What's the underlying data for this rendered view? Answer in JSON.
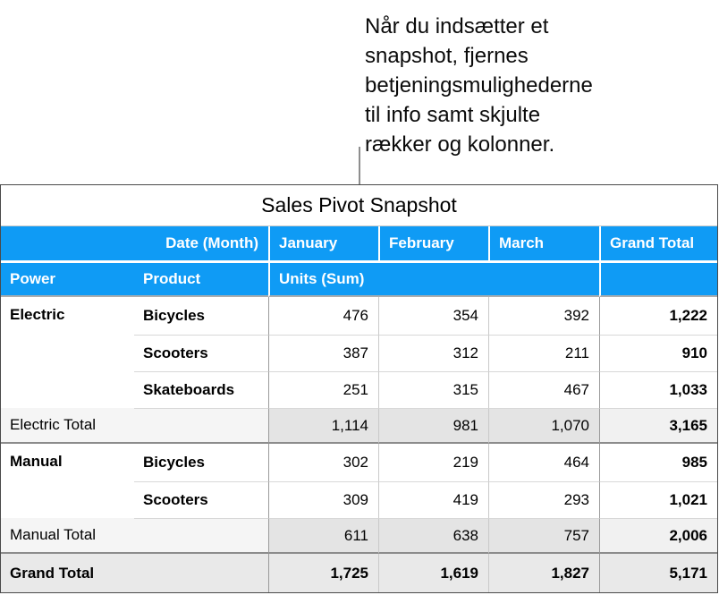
{
  "annotation": {
    "lines": [
      "Når du indsætter et",
      "snapshot, fjernes",
      "betjeningsmulighederne",
      "til info samt skjulte",
      "rækker og kolonner."
    ]
  },
  "table": {
    "title": "Sales Pivot Snapshot",
    "columns": {
      "row_header": "Date (Month)",
      "months": [
        "January",
        "February",
        "March"
      ],
      "grand": "Grand Total"
    },
    "row_fields": {
      "power": "Power",
      "product": "Product",
      "values_label": "Units (Sum)"
    },
    "groups": [
      {
        "power": "Electric",
        "rows": [
          {
            "product": "Bicycles",
            "values": [
              "476",
              "354",
              "392"
            ],
            "total": "1,222"
          },
          {
            "product": "Scooters",
            "values": [
              "387",
              "312",
              "211"
            ],
            "total": "910"
          },
          {
            "product": "Skateboards",
            "values": [
              "251",
              "315",
              "467"
            ],
            "total": "1,033"
          }
        ],
        "total": {
          "label": "Electric Total",
          "values": [
            "1,114",
            "981",
            "1,070"
          ],
          "grand": "3,165"
        }
      },
      {
        "power": "Manual",
        "rows": [
          {
            "product": "Bicycles",
            "values": [
              "302",
              "219",
              "464"
            ],
            "total": "985"
          },
          {
            "product": "Scooters",
            "values": [
              "309",
              "419",
              "293"
            ],
            "total": "1,021"
          }
        ],
        "total": {
          "label": "Manual Total",
          "values": [
            "611",
            "638",
            "757"
          ],
          "grand": "2,006"
        }
      }
    ],
    "grand_total": {
      "label": "Grand Total",
      "values": [
        "1,725",
        "1,619",
        "1,827"
      ],
      "grand": "5,171"
    }
  },
  "colors": {
    "header_blue": "#0f9bf5",
    "total_values_bg": "#e4e4e4",
    "total_label_bg": "#f5f5f5",
    "grand_row_bg": "#e9e9e9",
    "callout_gray": "#8e8e8e"
  }
}
